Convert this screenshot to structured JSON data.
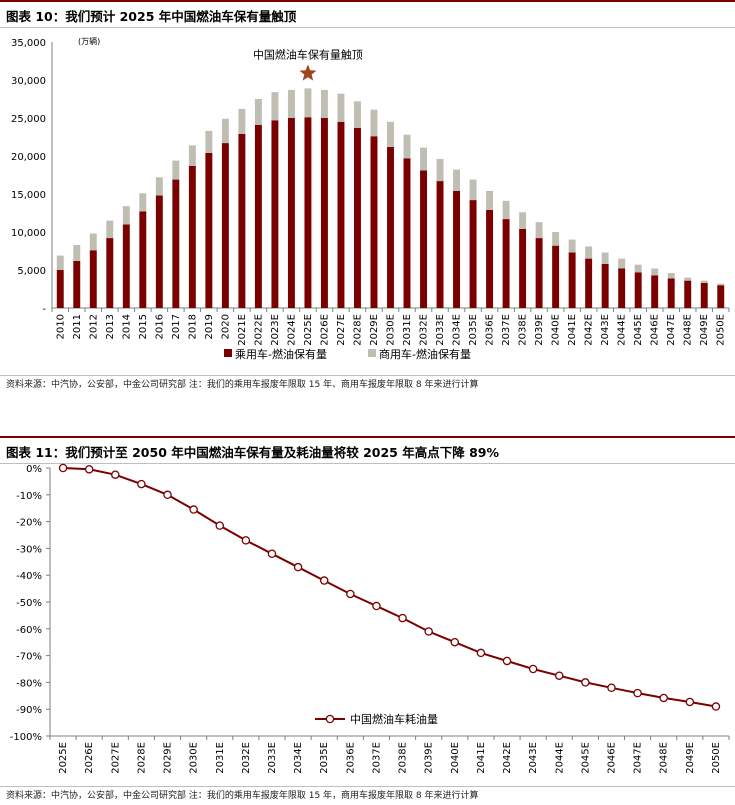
{
  "figures": [
    {
      "id": "fig10",
      "title": "图表 10：我们预计 2025 年中国燃油车保有量触顶",
      "source": "资料来源：中汽协，公安部，中金公司研究部    注：我们的乘用车报废年限取 15 年、商用车报废年限取 8 年来进行计算"
    },
    {
      "id": "fig11",
      "title": "图表 11：我们预计至 2050 年中国燃油车保有量及耗油量将较 2025 年高点下降 89%",
      "source": "资料来源：中汽协，公安部，中金公司研究部    注：我们的乘用车报废年限取 15 年，商用车报废年限取 8 年来进行计算"
    }
  ],
  "colors": {
    "passenger": "#7b0000",
    "commercial": "#c0beb2",
    "line": "#7b0000",
    "rule": "#7f0000"
  },
  "chart_data": [
    {
      "type": "bar",
      "stacked": true,
      "unit_label": "(万辆)",
      "annotation": {
        "text": "中国燃油车保有量触顶",
        "marker": "star",
        "category": "2025E"
      },
      "categories": [
        "2010",
        "2011",
        "2012",
        "2013",
        "2014",
        "2015",
        "2016",
        "2017",
        "2018",
        "2019",
        "2020",
        "2021E",
        "2022E",
        "2023E",
        "2024E",
        "2025E",
        "2026E",
        "2027E",
        "2028E",
        "2029E",
        "2030E",
        "2031E",
        "2032E",
        "2033E",
        "2034E",
        "2035E",
        "2036E",
        "2037E",
        "2038E",
        "2039E",
        "2040E",
        "2041E",
        "2042E",
        "2043E",
        "2044E",
        "2045E",
        "2046E",
        "2047E",
        "2048E",
        "2049E",
        "2050E"
      ],
      "series": [
        {
          "name": "乘用车-燃油保有量",
          "values": [
            5000,
            6200,
            7600,
            9200,
            11000,
            12700,
            14800,
            16900,
            18700,
            20400,
            21700,
            22900,
            24100,
            24700,
            25000,
            25100,
            25000,
            24500,
            23700,
            22600,
            21200,
            19700,
            18100,
            16700,
            15400,
            14200,
            12900,
            11700,
            10400,
            9200,
            8200,
            7300,
            6500,
            5800,
            5200,
            4700,
            4300,
            3900,
            3600,
            3300,
            3000
          ]
        },
        {
          "name": "商用车-燃油保有量",
          "values": [
            1900,
            2100,
            2200,
            2300,
            2400,
            2400,
            2400,
            2500,
            2700,
            2900,
            3200,
            3300,
            3400,
            3700,
            3700,
            3800,
            3700,
            3700,
            3500,
            3500,
            3300,
            3100,
            3000,
            2900,
            2800,
            2700,
            2500,
            2400,
            2200,
            2100,
            1800,
            1700,
            1600,
            1500,
            1300,
            1000,
            900,
            700,
            400,
            300,
            200
          ]
        }
      ],
      "ylim": [
        0,
        35000
      ],
      "yticks": [
        "-",
        "5,000",
        "10,000",
        "15,000",
        "20,000",
        "25,000",
        "30,000",
        "35,000"
      ],
      "legend": "bottom-center"
    },
    {
      "type": "line",
      "categories": [
        "2025E",
        "2026E",
        "2027E",
        "2028E",
        "2029E",
        "2030E",
        "2031E",
        "2032E",
        "2033E",
        "2034E",
        "2035E",
        "2036E",
        "2037E",
        "2038E",
        "2039E",
        "2040E",
        "2041E",
        "2042E",
        "2043E",
        "2044E",
        "2045E",
        "2046E",
        "2047E",
        "2048E",
        "2049E",
        "2050E"
      ],
      "series": [
        {
          "name": "中国燃油车耗油量",
          "values": [
            0,
            -0.5,
            -2.5,
            -6,
            -10,
            -15.5,
            -21.5,
            -27,
            -32,
            -37,
            -42,
            -47,
            -51.5,
            -56,
            -61,
            -65,
            -69,
            -72,
            -75,
            -77.5,
            -80,
            -82,
            -84,
            -85.8,
            -87.3,
            -89
          ]
        }
      ],
      "ylim": [
        -100,
        0
      ],
      "yticks": [
        "0%",
        "-10%",
        "-20%",
        "-30%",
        "-40%",
        "-50%",
        "-60%",
        "-70%",
        "-80%",
        "-90%",
        "-100%"
      ],
      "legend": "bottom-right"
    }
  ]
}
